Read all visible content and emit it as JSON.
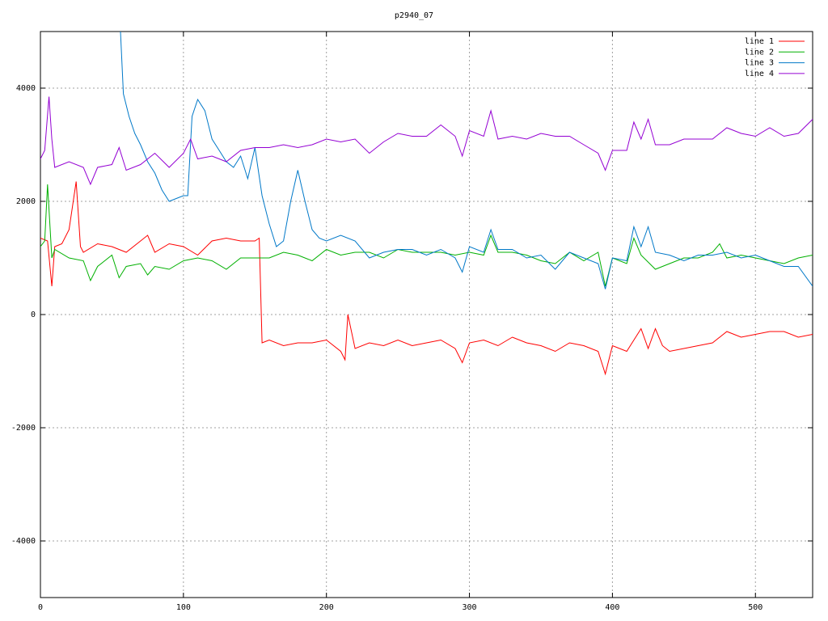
{
  "chart_data": {
    "type": "line",
    "title": "p2940_07",
    "xlim": [
      0,
      540
    ],
    "ylim": [
      -5000,
      5000
    ],
    "xticks": [
      0,
      100,
      200,
      300,
      400,
      500
    ],
    "yticks": [
      -4000,
      -2000,
      0,
      2000,
      4000
    ],
    "grid": true,
    "legend": "top-right",
    "series": [
      {
        "name": "line 1",
        "color": "#ff0000",
        "x": [
          0,
          5,
          8,
          10,
          15,
          20,
          25,
          28,
          30,
          40,
          50,
          60,
          70,
          75,
          80,
          90,
          100,
          110,
          120,
          130,
          140,
          150,
          153,
          155,
          160,
          170,
          180,
          190,
          200,
          210,
          213,
          215,
          220,
          230,
          240,
          250,
          260,
          270,
          280,
          290,
          295,
          300,
          310,
          320,
          330,
          340,
          350,
          360,
          370,
          380,
          390,
          395,
          400,
          410,
          420,
          425,
          430,
          435,
          440,
          450,
          460,
          470,
          480,
          490,
          500,
          510,
          520,
          530,
          540
        ],
        "values": [
          1350,
          1300,
          500,
          1200,
          1250,
          1500,
          2350,
          1200,
          1100,
          1250,
          1200,
          1100,
          1300,
          1400,
          1100,
          1250,
          1200,
          1050,
          1300,
          1350,
          1300,
          1300,
          1350,
          -500,
          -450,
          -550,
          -500,
          -500,
          -450,
          -650,
          -800,
          0,
          -600,
          -500,
          -550,
          -450,
          -550,
          -500,
          -450,
          -600,
          -850,
          -500,
          -450,
          -550,
          -400,
          -500,
          -550,
          -650,
          -500,
          -550,
          -650,
          -1050,
          -550,
          -650,
          -250,
          -600,
          -250,
          -550,
          -650,
          -600,
          -550,
          -500,
          -300,
          -400,
          -350,
          -300,
          -300,
          -400,
          -350
        ]
      },
      {
        "name": "line 2",
        "color": "#00b000",
        "x": [
          0,
          3,
          5,
          8,
          10,
          20,
          30,
          35,
          40,
          50,
          55,
          60,
          70,
          75,
          80,
          90,
          100,
          110,
          120,
          130,
          140,
          150,
          160,
          170,
          180,
          190,
          200,
          210,
          220,
          230,
          240,
          250,
          260,
          270,
          280,
          290,
          300,
          310,
          315,
          320,
          330,
          340,
          350,
          360,
          370,
          380,
          390,
          395,
          400,
          410,
          415,
          420,
          430,
          440,
          450,
          460,
          470,
          475,
          480,
          490,
          500,
          510,
          520,
          530,
          540
        ],
        "values": [
          1200,
          1300,
          2300,
          1000,
          1150,
          1000,
          950,
          600,
          850,
          1050,
          650,
          850,
          900,
          700,
          850,
          800,
          950,
          1000,
          950,
          800,
          1000,
          1000,
          1000,
          1100,
          1050,
          950,
          1150,
          1050,
          1100,
          1100,
          1000,
          1150,
          1100,
          1100,
          1100,
          1050,
          1100,
          1050,
          1400,
          1100,
          1100,
          1050,
          950,
          900,
          1100,
          950,
          1100,
          500,
          1000,
          900,
          1350,
          1050,
          800,
          900,
          1000,
          1000,
          1100,
          1250,
          1000,
          1050,
          1000,
          950,
          900,
          1000,
          1050
        ]
      },
      {
        "name": "line 3",
        "color": "#0078c8",
        "x": [
          56,
          58,
          62,
          66,
          70,
          75,
          80,
          85,
          90,
          95,
          100,
          103,
          106,
          110,
          115,
          120,
          125,
          130,
          135,
          140,
          145,
          150,
          155,
          160,
          165,
          170,
          175,
          180,
          185,
          190,
          195,
          200,
          210,
          220,
          230,
          240,
          250,
          260,
          270,
          280,
          290,
          295,
          300,
          310,
          315,
          320,
          330,
          340,
          350,
          360,
          370,
          380,
          390,
          395,
          400,
          410,
          415,
          420,
          425,
          430,
          440,
          450,
          460,
          470,
          480,
          490,
          500,
          510,
          520,
          530,
          540
        ],
        "values": [
          5000,
          3900,
          3500,
          3200,
          3000,
          2700,
          2500,
          2200,
          2000,
          2050,
          2100,
          2100,
          3500,
          3800,
          3600,
          3100,
          2900,
          2700,
          2600,
          2800,
          2400,
          2950,
          2100,
          1600,
          1200,
          1300,
          2000,
          2550,
          2000,
          1500,
          1350,
          1300,
          1400,
          1300,
          1000,
          1100,
          1150,
          1150,
          1050,
          1150,
          1000,
          750,
          1200,
          1100,
          1500,
          1150,
          1150,
          1000,
          1050,
          800,
          1100,
          1000,
          900,
          450,
          1000,
          950,
          1550,
          1200,
          1550,
          1100,
          1050,
          950,
          1050,
          1050,
          1100,
          1000,
          1050,
          950,
          850,
          850,
          500
        ]
      },
      {
        "name": "line 4",
        "color": "#9400d3",
        "x": [
          0,
          3,
          6,
          8,
          10,
          20,
          30,
          35,
          40,
          50,
          55,
          60,
          70,
          80,
          90,
          100,
          105,
          110,
          120,
          130,
          140,
          150,
          160,
          170,
          180,
          190,
          200,
          210,
          220,
          230,
          240,
          250,
          260,
          270,
          280,
          290,
          295,
          300,
          310,
          315,
          320,
          330,
          340,
          350,
          360,
          370,
          380,
          390,
          395,
          400,
          410,
          415,
          420,
          425,
          430,
          440,
          450,
          460,
          470,
          480,
          490,
          500,
          510,
          520,
          530,
          540
        ],
        "values": [
          2750,
          2900,
          3850,
          3100,
          2600,
          2700,
          2600,
          2300,
          2600,
          2650,
          2950,
          2550,
          2650,
          2850,
          2600,
          2850,
          3100,
          2750,
          2800,
          2700,
          2900,
          2950,
          2950,
          3000,
          2950,
          3000,
          3100,
          3050,
          3100,
          2850,
          3050,
          3200,
          3150,
          3150,
          3350,
          3150,
          2800,
          3250,
          3150,
          3600,
          3100,
          3150,
          3100,
          3200,
          3150,
          3150,
          3000,
          2850,
          2550,
          2900,
          2900,
          3400,
          3100,
          3450,
          3000,
          3000,
          3100,
          3100,
          3100,
          3300,
          3200,
          3150,
          3300,
          3150,
          3200,
          3450
        ]
      }
    ]
  }
}
